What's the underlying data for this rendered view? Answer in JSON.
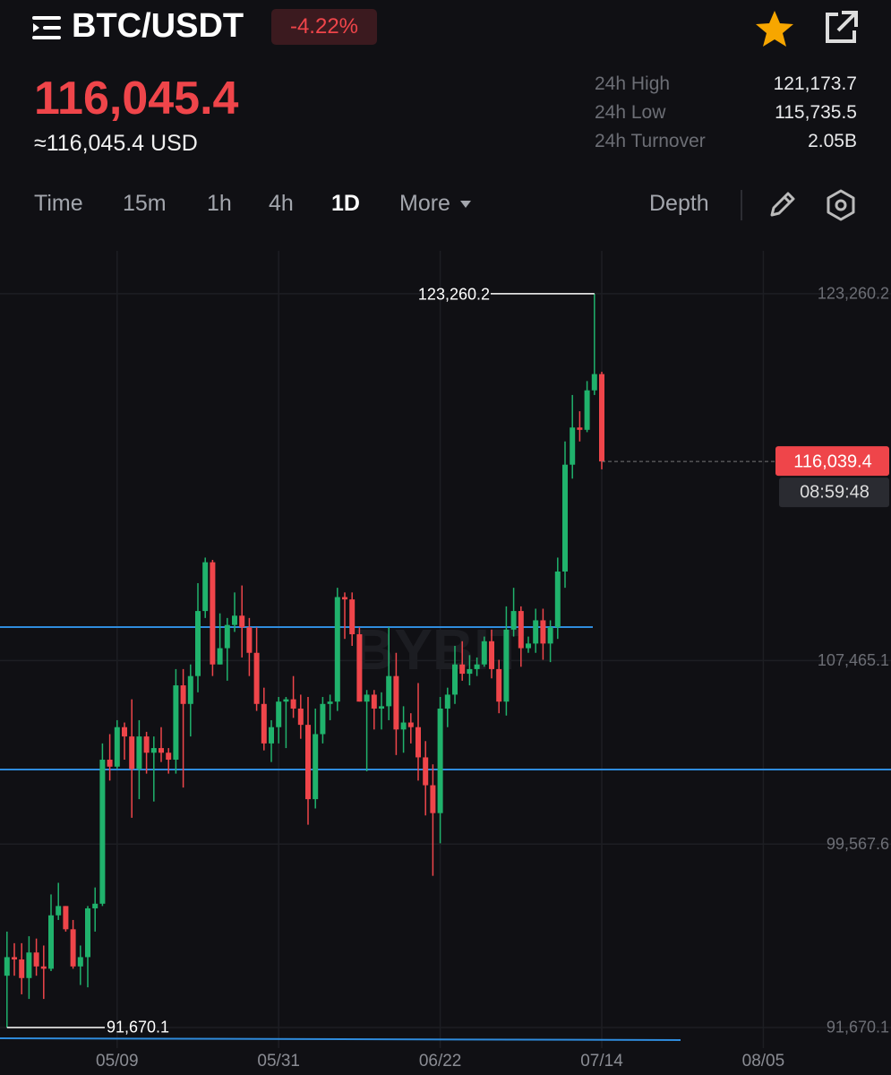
{
  "header": {
    "pair": "BTC/USDT",
    "change": "-4.22%",
    "price": "116,045.4",
    "usd_price": "≈116,045.4 USD",
    "stats": [
      {
        "label": "24h High",
        "value": "121,173.7"
      },
      {
        "label": "24h Low",
        "value": "115,735.5"
      },
      {
        "label": "24h Turnover",
        "value": "2.05B"
      }
    ]
  },
  "tabs": [
    "Time",
    "15m",
    "1h",
    "4h",
    "1D",
    "More"
  ],
  "depth": "Depth",
  "chart_data": {
    "type": "candlestick",
    "watermark": "BYBIT",
    "categories": [
      null,
      null,
      null,
      null,
      null,
      null,
      null,
      null,
      null,
      null,
      null,
      null,
      null,
      null,
      null,
      "05/09",
      null,
      null,
      null,
      null,
      null,
      null,
      null,
      null,
      null,
      null,
      null,
      null,
      null,
      null,
      null,
      null,
      null,
      null,
      null,
      null,
      null,
      "05/31",
      null,
      null,
      null,
      null,
      null,
      null,
      null,
      null,
      null,
      null,
      null,
      null,
      null,
      null,
      null,
      null,
      null,
      null,
      null,
      null,
      null,
      "06/22",
      null,
      null,
      null,
      null,
      null,
      null,
      null,
      null,
      null,
      null,
      null,
      null,
      null,
      null,
      null,
      null,
      null,
      null,
      null,
      null,
      null,
      "07/14",
      null,
      null,
      null,
      null,
      null,
      null,
      null,
      null,
      null,
      null,
      null,
      null,
      null,
      null,
      null,
      null,
      null,
      null,
      null,
      null,
      null,
      "08/05"
    ],
    "open": [
      93900,
      94700,
      94600,
      93800,
      94900,
      94300,
      94200,
      96500,
      96900,
      95900,
      94300,
      94700,
      96800,
      97000,
      103200,
      102900,
      104600,
      104200,
      102800,
      104200,
      103500,
      103700,
      103500,
      103200,
      106400,
      105600,
      106800,
      109600,
      111700,
      107300,
      108000,
      109000,
      109400,
      108900,
      107800,
      105600,
      103900,
      104600,
      105700,
      105800,
      105400,
      104700,
      101500,
      104300,
      105600,
      105700,
      110200,
      110100,
      108600,
      105700,
      106000,
      105400,
      105500,
      106800,
      104500,
      104800,
      104600,
      103300,
      102100,
      100900,
      105400,
      106000,
      107300,
      106900,
      107100,
      107300,
      108300,
      107100,
      105700,
      108800,
      109600,
      108000,
      108200,
      109200,
      108200,
      108900,
      111300,
      115900,
      117500,
      117400,
      119100,
      119800,
      null,
      null,
      null,
      null,
      null,
      null,
      null,
      null,
      null,
      null,
      null,
      null,
      null,
      null,
      null,
      null,
      null,
      null,
      null,
      null,
      null,
      null
    ],
    "high": [
      95800,
      95300,
      95300,
      95600,
      95500,
      95200,
      97400,
      97900,
      96900,
      96300,
      95200,
      96900,
      97700,
      103900,
      104300,
      104900,
      104800,
      105800,
      104900,
      104400,
      104200,
      104600,
      103700,
      107100,
      107100,
      107300,
      110800,
      111900,
      111800,
      109500,
      109300,
      110400,
      110700,
      109300,
      108900,
      106300,
      104900,
      105900,
      105900,
      106800,
      106000,
      105900,
      105400,
      105900,
      106000,
      110600,
      110400,
      110400,
      108900,
      106200,
      106200,
      106100,
      108900,
      107800,
      105500,
      105200,
      106500,
      104000,
      103000,
      105900,
      106300,
      108100,
      108300,
      107700,
      107600,
      108500,
      108800,
      107500,
      109800,
      110600,
      109800,
      108500,
      109700,
      109700,
      109200,
      111900,
      116900,
      118900,
      118200,
      119500,
      123260.2,
      119900,
      null,
      null,
      null,
      null,
      null,
      null,
      null,
      null,
      null,
      null,
      null,
      null,
      null,
      null,
      null,
      null,
      null,
      null,
      null,
      null,
      null,
      null
    ],
    "low": [
      91670.1,
      93900,
      93100,
      92900,
      93900,
      92900,
      94100,
      96300,
      95800,
      94200,
      93500,
      93400,
      95800,
      96900,
      102300,
      102800,
      103200,
      100700,
      101500,
      102600,
      101400,
      103100,
      102600,
      102600,
      102000,
      104200,
      106100,
      109300,
      106800,
      107300,
      106600,
      108700,
      107600,
      106800,
      105300,
      103600,
      103100,
      103900,
      103700,
      105000,
      104100,
      100400,
      101100,
      103900,
      104900,
      105300,
      108400,
      108100,
      105700,
      102700,
      104500,
      104500,
      104900,
      103400,
      103500,
      103900,
      102300,
      100800,
      98200,
      99600,
      104600,
      105600,
      106600,
      106400,
      106800,
      107200,
      106700,
      105200,
      105100,
      108500,
      107200,
      107800,
      107800,
      107500,
      107400,
      108400,
      110600,
      115300,
      116900,
      117300,
      118900,
      115700,
      null,
      null,
      null,
      null,
      null,
      null,
      null,
      null,
      null,
      null,
      null,
      null,
      null,
      null,
      null,
      null,
      null,
      null,
      null,
      null,
      null,
      null
    ],
    "close": [
      94700,
      94600,
      93800,
      94900,
      94300,
      94200,
      96500,
      96900,
      95900,
      94300,
      94700,
      96800,
      97000,
      103200,
      102900,
      104600,
      104200,
      102800,
      104200,
      103500,
      103700,
      103500,
      103200,
      106400,
      105600,
      106800,
      109600,
      111700,
      107300,
      108000,
      109000,
      109400,
      108900,
      107800,
      105600,
      103900,
      104600,
      105700,
      105800,
      105400,
      104700,
      101500,
      104300,
      105600,
      105700,
      110200,
      110100,
      108600,
      105700,
      106000,
      105400,
      105500,
      106800,
      104500,
      104800,
      104600,
      103300,
      102100,
      100900,
      105400,
      106000,
      107300,
      106900,
      107100,
      107300,
      108300,
      107100,
      105700,
      108800,
      109600,
      108000,
      108200,
      109200,
      108200,
      108900,
      111300,
      115900,
      117500,
      117400,
      119100,
      119800,
      116039.4,
      null,
      null,
      null,
      null,
      null,
      null,
      null,
      null,
      null,
      null,
      null,
      null,
      null,
      null,
      null,
      null,
      null,
      null,
      null,
      null,
      null,
      null
    ],
    "up_color": "#20b26c",
    "down_color": "#ef454a",
    "ylim": [
      90783,
      125106
    ],
    "yticks": [
      {
        "value": 91670.1,
        "label": "91,670.1"
      },
      {
        "value": 99567.6,
        "label": "99,567.6"
      },
      {
        "value": 107465.1,
        "label": "107,465.1"
      },
      {
        "value": 123260.2,
        "label": "123,260.2"
      }
    ],
    "max_marker": {
      "value": 123260.2,
      "label": "123,260.2"
    },
    "min_marker": {
      "value": 91670.1,
      "label": "91,670.1"
    },
    "last_price": {
      "value": 116039.4,
      "label": "116,039.4"
    },
    "countdown": "08:59:48"
  }
}
